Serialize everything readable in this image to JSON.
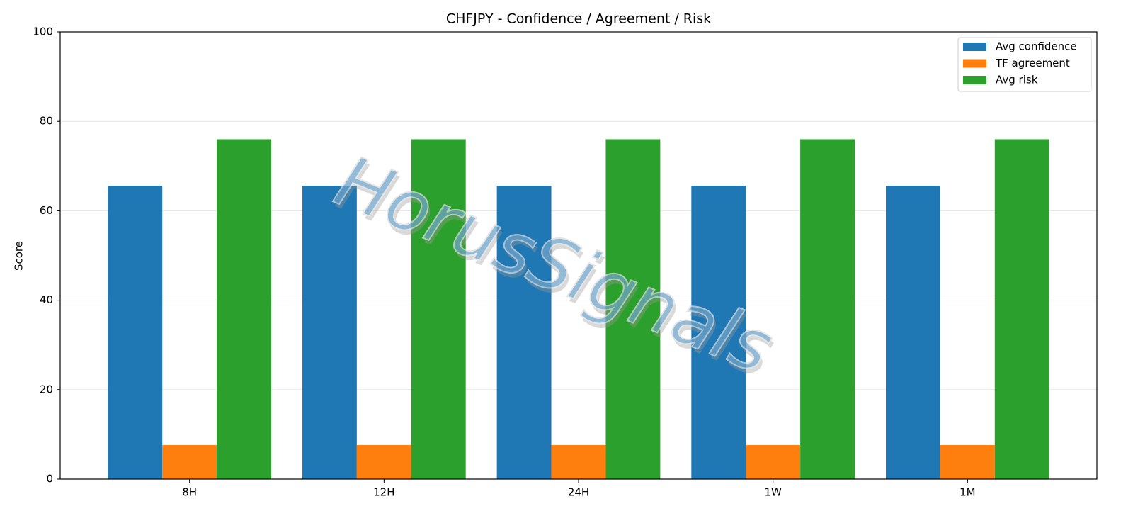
{
  "chart_data": {
    "type": "bar",
    "title": "CHFJPY - Confidence / Agreement / Risk",
    "ylabel": "Score",
    "watermark": "HorusSignals",
    "categories": [
      "8H",
      "12H",
      "24H",
      "1W",
      "1M"
    ],
    "series": [
      {
        "name": "Avg confidence",
        "color": "#1f77b4",
        "values": [
          65.6,
          65.6,
          65.6,
          65.6,
          65.6
        ]
      },
      {
        "name": "TF agreement",
        "color": "#ff7f0e",
        "values": [
          7.6,
          7.6,
          7.6,
          7.6,
          7.6
        ]
      },
      {
        "name": "Avg risk",
        "color": "#2ca02c",
        "values": [
          76,
          76,
          76,
          76,
          76
        ]
      }
    ],
    "ylim": [
      0,
      100
    ],
    "yticks": [
      0,
      20,
      40,
      60,
      80,
      100
    ],
    "grid": true,
    "legend": "upper right"
  }
}
